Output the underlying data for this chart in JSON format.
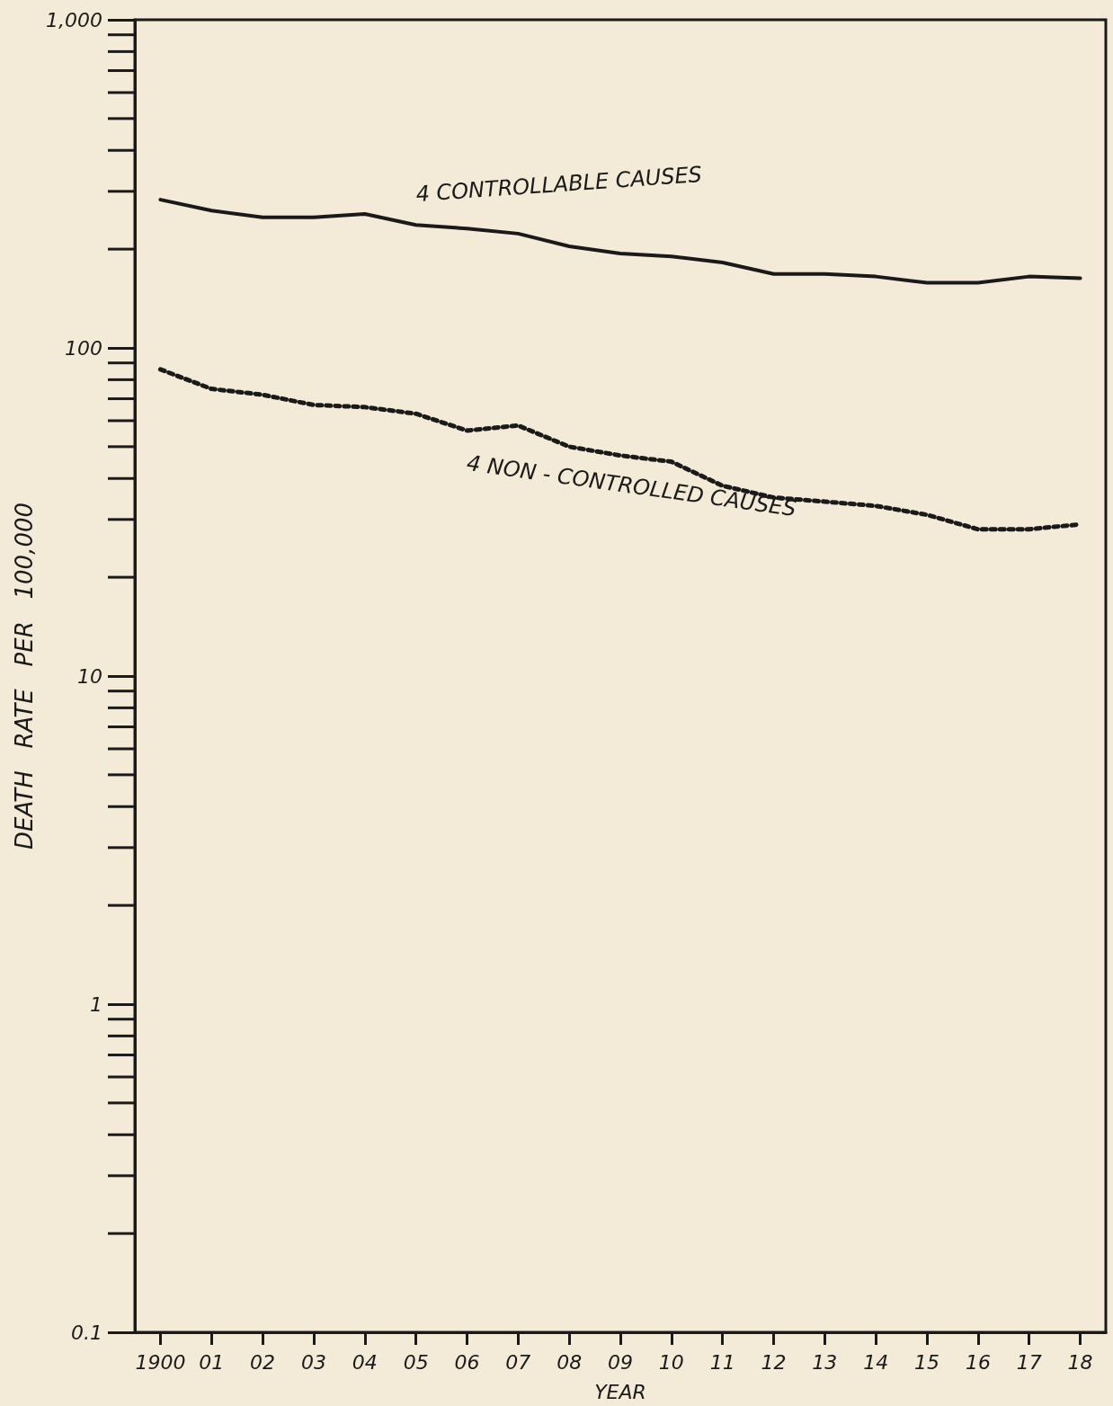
{
  "chart_data": {
    "type": "line",
    "xlabel": "YEAR",
    "ylabel": "DEATH   RATE   PER   100,000",
    "log": true,
    "marker": "none",
    "categories": [
      "1900",
      "01",
      "02",
      "03",
      "04",
      "05",
      "06",
      "07",
      "08",
      "09",
      "10",
      "11",
      "12",
      "13",
      "14",
      "15",
      "16",
      "17",
      "18"
    ],
    "ylim": [
      0.1,
      1000
    ],
    "yticks": [
      {
        "value": 0.1,
        "label": "0.1"
      },
      {
        "value": 1,
        "label": "1"
      },
      {
        "value": 10,
        "label": "10"
      },
      {
        "value": 100,
        "label": "100"
      },
      {
        "value": 1000,
        "label": "1,000"
      }
    ],
    "series": [
      {
        "name": "4 CONTROLLABLE CAUSES",
        "color": "#1a1a1a",
        "line_style": "solid",
        "values": [
          283,
          262,
          250,
          250,
          256,
          237,
          231,
          223,
          204,
          194,
          190,
          182,
          168,
          168,
          165,
          158,
          158,
          165,
          163
        ]
      },
      {
        "name": "4 NON - CONTROLLED CAUSES",
        "color": "#1a1a1a",
        "line_style": "dotted",
        "values": [
          86,
          75,
          72,
          67,
          66,
          63,
          56,
          58,
          50,
          47,
          45,
          38,
          35,
          34,
          33,
          31,
          28,
          28,
          29
        ]
      }
    ]
  }
}
